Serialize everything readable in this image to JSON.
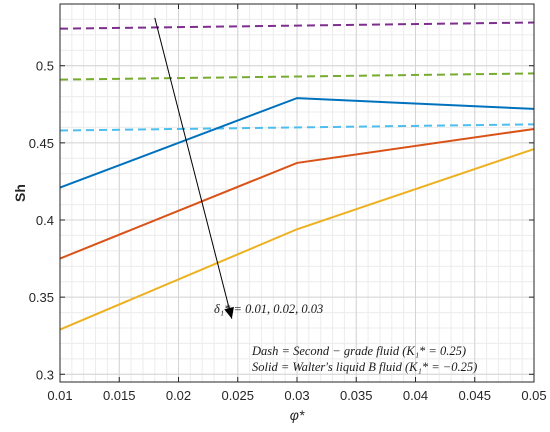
{
  "chart_data": {
    "type": "line",
    "xlabel": "φ*",
    "ylabel": "Sh",
    "xlim": [
      0.01,
      0.05
    ],
    "ylim": [
      0.295,
      0.54
    ],
    "x_ticks": [
      "0.01",
      "0.015",
      "0.02",
      "0.025",
      "0.03",
      "0.035",
      "0.04",
      "0.045",
      "0.05"
    ],
    "y_ticks": [
      "0.3",
      "0.35",
      "0.4",
      "0.45",
      "0.5"
    ],
    "grid": true,
    "minor_grid": true,
    "x_tick_values": [
      0.01,
      0.015,
      0.02,
      0.025,
      0.03,
      0.035,
      0.04,
      0.045,
      0.05
    ],
    "y_tick_values": [
      0.3,
      0.35,
      0.4,
      0.45,
      0.5
    ],
    "series": [
      {
        "style": "dash",
        "color": "#7e2f8e",
        "x": [
          0.01,
          0.03,
          0.05
        ],
        "y": [
          0.524,
          0.526,
          0.528
        ]
      },
      {
        "style": "dash",
        "color": "#77ac30",
        "x": [
          0.01,
          0.03,
          0.05
        ],
        "y": [
          0.491,
          0.493,
          0.495
        ]
      },
      {
        "style": "dash",
        "color": "#4dbeee",
        "x": [
          0.01,
          0.03,
          0.05
        ],
        "y": [
          0.458,
          0.46,
          0.462
        ]
      },
      {
        "style": "solid",
        "color": "#0072bd",
        "x": [
          0.01,
          0.03,
          0.05
        ],
        "y": [
          0.421,
          0.479,
          0.472
        ]
      },
      {
        "style": "solid",
        "color": "#d95319",
        "x": [
          0.01,
          0.03,
          0.05
        ],
        "y": [
          0.375,
          0.437,
          0.459
        ]
      },
      {
        "style": "solid",
        "color": "#edb120",
        "x": [
          0.01,
          0.03,
          0.05
        ],
        "y": [
          0.329,
          0.394,
          0.446
        ]
      }
    ],
    "arrow": {
      "from": [
        0.018,
        0.531
      ],
      "to": [
        0.0245,
        0.336
      ]
    },
    "annotations": {
      "delta": "δ₁* = 0.01, 0.02, 0.03",
      "dash_note": "Dash = Second − grade fluid (K₁* = 0.25)",
      "solid_note": "Solid = Walter's liquid B fluid (K₁* = −0.25)"
    }
  }
}
